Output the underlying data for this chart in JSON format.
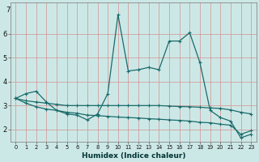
{
  "xlabel": "Humidex (Indice chaleur)",
  "bg_color": "#cce8e6",
  "plot_bg_color": "#cce8e6",
  "grid_color": "#d49090",
  "line_color": "#1a6b6b",
  "x_values": [
    0,
    1,
    2,
    3,
    4,
    5,
    6,
    7,
    8,
    9,
    10,
    11,
    12,
    13,
    14,
    15,
    16,
    17,
    18,
    19,
    20,
    21,
    22,
    23
  ],
  "line_main": [
    3.3,
    3.5,
    3.6,
    3.15,
    2.8,
    2.65,
    2.6,
    2.4,
    2.65,
    3.5,
    6.8,
    4.45,
    4.5,
    4.6,
    4.5,
    5.7,
    5.7,
    6.05,
    4.8,
    2.8,
    2.5,
    2.35,
    1.65,
    1.8
  ],
  "line_upper": [
    3.3,
    3.2,
    3.15,
    3.1,
    3.05,
    3.0,
    3.0,
    3.0,
    3.0,
    3.0,
    3.0,
    3.0,
    3.0,
    3.0,
    3.0,
    2.98,
    2.96,
    2.95,
    2.93,
    2.9,
    2.88,
    2.82,
    2.72,
    2.65
  ],
  "line_lower": [
    3.3,
    3.1,
    2.95,
    2.85,
    2.8,
    2.72,
    2.68,
    2.6,
    2.58,
    2.55,
    2.52,
    2.5,
    2.48,
    2.45,
    2.43,
    2.4,
    2.38,
    2.35,
    2.3,
    2.28,
    2.22,
    2.18,
    1.8,
    1.95
  ],
  "ylim": [
    1.5,
    7.3
  ],
  "yticks": [
    2,
    3,
    4,
    5,
    6
  ],
  "ytick_labels": [
    "2",
    "3",
    "4",
    "5",
    "6"
  ],
  "y_extra_label": "7",
  "xlim": [
    -0.5,
    23.5
  ]
}
